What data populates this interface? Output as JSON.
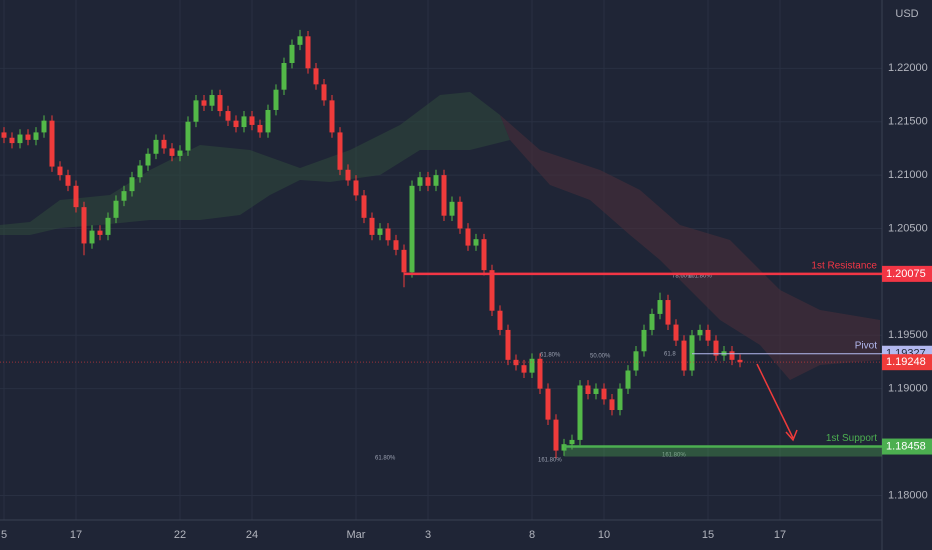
{
  "chart_data": {
    "type": "candlestick",
    "axis_unit": "USD",
    "categories": [
      "5",
      null,
      null,
      null,
      null,
      null,
      null,
      null,
      null,
      "17",
      null,
      null,
      null,
      null,
      null,
      null,
      null,
      null,
      null,
      null,
      null,
      null,
      "22",
      null,
      null,
      null,
      null,
      null,
      null,
      null,
      null,
      "24",
      null,
      null,
      null,
      null,
      null,
      null,
      null,
      null,
      null,
      null,
      null,
      null,
      "Mar",
      null,
      null,
      null,
      null,
      null,
      null,
      null,
      null,
      "3",
      null,
      null,
      null,
      null,
      null,
      null,
      null,
      null,
      null,
      null,
      null,
      null,
      "8",
      null,
      null,
      null,
      null,
      null,
      null,
      null,
      null,
      "10",
      null,
      null,
      null,
      null,
      null,
      null,
      null,
      null,
      null,
      null,
      null,
      null,
      "15",
      null,
      null,
      null,
      null,
      null,
      null,
      null,
      null,
      "17"
    ],
    "open": [
      1.214,
      1.2135,
      1.213,
      1.2138,
      1.2133,
      1.214,
      1.2151,
      1.2108,
      1.21,
      1.209,
      1.207,
      1.2036,
      1.2048,
      1.2044,
      1.206,
      1.2076,
      1.2085,
      1.2098,
      1.2109,
      1.212,
      1.2133,
      1.2125,
      1.2118,
      1.2123,
      1.215,
      1.217,
      1.2165,
      1.2175,
      1.216,
      1.2151,
      1.2145,
      1.2155,
      1.2147,
      1.214,
      1.2161,
      1.218,
      1.2205,
      1.2222,
      1.223,
      1.22,
      1.2185,
      1.217,
      1.214,
      1.2105,
      1.2095,
      1.2081,
      1.206,
      1.2044,
      1.205,
      1.2039,
      1.203,
      1.2009,
      1.209,
      1.2098,
      1.209,
      1.21,
      1.2062,
      1.2075,
      1.205,
      1.2034,
      1.204,
      1.2011,
      1.1973,
      1.1955,
      1.1927,
      1.1922,
      1.1915,
      1.1928,
      1.19,
      1.1871,
      1.1842,
      1.1848,
      1.1852,
      1.1903,
      1.1895,
      1.19,
      1.189,
      1.188,
      1.19,
      1.1917,
      1.1935,
      1.1955,
      1.197,
      1.1983,
      1.196,
      1.1945,
      1.1917,
      1.195,
      1.1955,
      1.1945,
      1.1931,
      1.1935,
      1.1927,
      null,
      null,
      null,
      null,
      null
    ],
    "high": [
      1.2145,
      1.214,
      1.2143,
      1.2143,
      1.2145,
      1.2156,
      1.2156,
      1.2113,
      1.2105,
      1.2095,
      1.2075,
      1.2053,
      1.2053,
      1.2065,
      1.2081,
      1.209,
      1.2103,
      1.2114,
      1.2125,
      1.2138,
      1.2138,
      1.213,
      1.2128,
      1.2155,
      1.2175,
      1.2175,
      1.218,
      1.218,
      1.2165,
      1.2156,
      1.216,
      1.216,
      1.2152,
      1.2166,
      1.2185,
      1.221,
      1.2227,
      1.2236,
      1.2235,
      1.2205,
      1.219,
      1.2175,
      1.2145,
      1.211,
      1.21,
      1.2086,
      1.2065,
      1.2055,
      1.2055,
      1.2044,
      1.2035,
      1.2095,
      1.2103,
      1.2103,
      1.2105,
      1.2105,
      1.208,
      1.208,
      1.2055,
      1.2045,
      1.2045,
      1.2016,
      1.1978,
      1.196,
      1.1932,
      1.1927,
      1.1933,
      1.1933,
      1.1905,
      1.1876,
      1.1853,
      1.1857,
      1.1908,
      1.1908,
      1.1905,
      1.1905,
      1.1895,
      1.1905,
      1.1922,
      1.194,
      1.196,
      1.1975,
      1.199,
      1.1988,
      1.1965,
      1.195,
      1.1955,
      1.196,
      1.196,
      1.195,
      1.194,
      1.194,
      1.1932,
      null,
      null,
      null,
      null,
      null
    ],
    "low": [
      1.213,
      1.2125,
      1.2125,
      1.2128,
      1.2128,
      1.2135,
      1.2103,
      1.2095,
      1.2085,
      1.2065,
      1.2025,
      1.2031,
      1.2039,
      1.2039,
      1.2055,
      1.2071,
      1.208,
      1.2093,
      1.2104,
      1.2115,
      1.212,
      1.2113,
      1.2113,
      1.2118,
      1.2145,
      1.216,
      1.216,
      1.2155,
      1.2146,
      1.214,
      1.214,
      1.2142,
      1.2135,
      1.2135,
      1.2156,
      1.2175,
      1.22,
      1.2217,
      1.2195,
      1.218,
      1.2165,
      1.2135,
      1.21,
      1.209,
      1.2076,
      1.2055,
      1.2039,
      1.2039,
      1.2034,
      1.2025,
      1.1995,
      1.2004,
      1.2085,
      1.2085,
      1.2085,
      1.2057,
      1.2057,
      1.2045,
      1.2029,
      1.2029,
      1.2006,
      1.1968,
      1.195,
      1.1922,
      1.1917,
      1.191,
      1.191,
      1.1895,
      1.1866,
      1.1835,
      1.1837,
      1.1843,
      1.1847,
      1.189,
      1.189,
      1.1885,
      1.1875,
      1.1875,
      1.1895,
      1.1912,
      1.193,
      1.195,
      1.1965,
      1.1955,
      1.194,
      1.1912,
      1.1912,
      1.1945,
      1.194,
      1.1926,
      1.1926,
      1.1922,
      1.192,
      null,
      null,
      null,
      null,
      null
    ],
    "close": [
      1.2135,
      1.213,
      1.2138,
      1.2133,
      1.214,
      1.2151,
      1.2108,
      1.21,
      1.209,
      1.207,
      1.2036,
      1.2048,
      1.2044,
      1.206,
      1.2076,
      1.2085,
      1.2098,
      1.2109,
      1.212,
      1.2133,
      1.2125,
      1.2118,
      1.2123,
      1.215,
      1.217,
      1.2165,
      1.2175,
      1.216,
      1.2151,
      1.2145,
      1.2155,
      1.2147,
      1.214,
      1.2161,
      1.218,
      1.2205,
      1.2222,
      1.223,
      1.22,
      1.2185,
      1.217,
      1.214,
      1.2105,
      1.2095,
      1.2081,
      1.206,
      1.2044,
      1.205,
      1.2039,
      1.203,
      1.2009,
      1.209,
      1.2098,
      1.209,
      1.21,
      1.2062,
      1.2075,
      1.205,
      1.2034,
      1.204,
      1.2011,
      1.1973,
      1.1955,
      1.1927,
      1.1922,
      1.1915,
      1.1928,
      1.19,
      1.1871,
      1.1842,
      1.1848,
      1.1852,
      1.1903,
      1.1895,
      1.19,
      1.189,
      1.188,
      1.19,
      1.1917,
      1.1935,
      1.1955,
      1.197,
      1.1983,
      1.196,
      1.1945,
      1.1917,
      1.195,
      1.1955,
      1.1945,
      1.1931,
      1.1935,
      1.1927,
      1.19248,
      null,
      null,
      null,
      null,
      null
    ],
    "up_color": "#53b948",
    "down_color": "#ef3b3b",
    "ylim": [
      1.1777,
      1.2264
    ],
    "yticks": [
      {
        "value": 1.22,
        "label": "1.22000"
      },
      {
        "value": 1.215,
        "label": "1.21500"
      },
      {
        "value": 1.21,
        "label": "1.21000"
      },
      {
        "value": 1.205,
        "label": "1.20500"
      },
      {
        "value": 1.195,
        "label": "1.19500"
      },
      {
        "value": 1.19,
        "label": "1.19000"
      },
      {
        "value": 1.18,
        "label": "1.18000"
      }
    ],
    "grid": true,
    "levels": [
      {
        "name": "1st Resistance",
        "value": 1.20075,
        "color": "#f23645"
      },
      {
        "name": "Pivot",
        "value": 1.19327,
        "color": "#b3b9f0"
      },
      {
        "name": "1st Support",
        "value": 1.18458,
        "color": "#4caf50"
      }
    ],
    "last_price": 1.19248,
    "fib_labels": [
      "78.60%",
      "161.80%",
      "61.80%",
      "50.00%",
      "61.8",
      "61.80%",
      "161.80%",
      "161.80%"
    ]
  }
}
